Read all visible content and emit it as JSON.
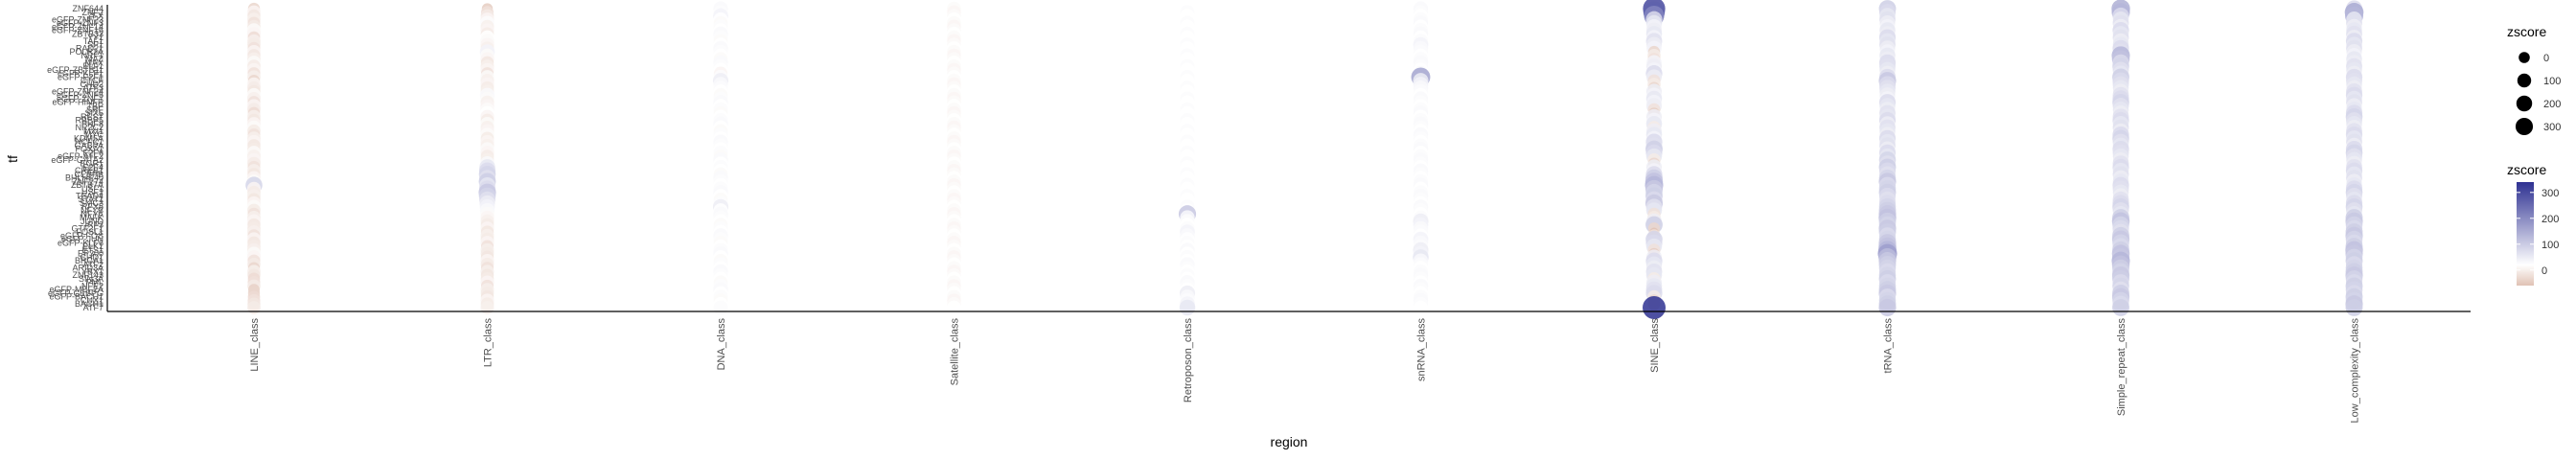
{
  "chart_data": {
    "type": "scatter",
    "subtype": "dot-plot",
    "xlabel": "region",
    "ylabel": "tf",
    "categories": [
      "LINE_class",
      "LTR_class",
      "DNA_class",
      "Satellite_class",
      "Retroposon_class",
      "snRNA_class",
      "SINE_class",
      "tRNA_class",
      "Simple_repeat_class",
      "Low_complexity_class"
    ],
    "y_tick_labels": [
      "ZNF644",
      "ZNF2",
      "ZFX",
      "eGFP-ZNF23",
      "eGFP-ZNF3",
      "eGFP-ZNF14",
      "eGFP-ZNF16",
      "ZBTB33",
      "YY1",
      "TAF1",
      "SP1",
      "RAD21",
      "POLR2A",
      "NRF1",
      "MAZ",
      "MAX",
      "ELF1",
      "eGFP-ZBTB11",
      "eGFP-KLF1",
      "eGFP-E2F1",
      "CTCF",
      "CHD2",
      "ATF3",
      "eGFP-ZNF24",
      "eGFP-ZNF5",
      "eGFP-ZNF7",
      "eGFP-HINFP",
      "TBP",
      "SRF",
      "SIX5",
      "REST",
      "RBBP5",
      "PHF8",
      "NR2C2",
      "MXI1",
      "MYC",
      "KDM5A",
      "HCFC1",
      "GABPA",
      "FOXA1",
      "E2F6",
      "eGFP-ATF2",
      "eGFP-GATA2",
      "EGR1",
      "E2F4",
      "CREB1",
      "CEBPB",
      "BHLHE40",
      "ZNF274",
      "ZBTB7A",
      "USF1",
      "USF2",
      "TEAD4",
      "STAT1",
      "SMC3",
      "RFX5",
      "NFYB",
      "NFYA",
      "MAFK",
      "JUND",
      "IRF3",
      "GTF2F1",
      "FOSL1",
      "eGFP-FOS",
      "eGFP-JUN",
      "eGFP-KLF6",
      "ELK1",
      "ETS1",
      "EP300",
      "CHD1",
      "BRCA1",
      "ATF2",
      "ARID3A",
      "YBX1",
      "ZNF143",
      "SIN3A",
      "PML",
      "NFE2",
      "eGFP-MEF2A",
      "eGFP-CEBPG",
      "eGFP-BACH1",
      "CUX1",
      "BACH1",
      "ATF7"
    ],
    "size_legend": {
      "title": "zscore",
      "breaks": [
        0,
        100,
        200,
        300
      ]
    },
    "color_legend": {
      "title": "zscore",
      "breaks": [
        0,
        100,
        200,
        300
      ],
      "low": "#e0c2b4",
      "mid": "#ffffff",
      "high": "#2e3192"
    },
    "values": [
      [
        -40,
        -10,
        -25,
        -15,
        -30,
        -20,
        -5,
        -10,
        -35,
        -15,
        -20,
        -30,
        -10,
        -25,
        -15,
        -5,
        -20,
        -10,
        -30,
        -15,
        -40,
        -10,
        -20,
        -25,
        -5,
        -15,
        -30,
        -10,
        -20,
        -35,
        -15,
        -25,
        -10,
        -5,
        -20,
        -30,
        -15,
        -10,
        -25,
        -20,
        -5,
        -15,
        -10,
        -20,
        -30,
        -15,
        -25,
        -10,
        -5,
        70,
        -10,
        -20,
        -15,
        -25,
        -10,
        -5,
        -20,
        -30,
        -15,
        -10,
        -25,
        -20,
        -15,
        -30,
        -10,
        -25,
        -20,
        -15,
        -5,
        -10,
        -30,
        -20,
        -40,
        -15,
        -25,
        -35,
        -30,
        -20,
        -45,
        -40,
        -35,
        -30,
        -25,
        -20
      ],
      [
        -50,
        -30,
        -20,
        -10,
        5,
        -15,
        -10,
        -20,
        0,
        -5,
        -10,
        -15,
        20,
        -5,
        -10,
        -25,
        -15,
        -10,
        -30,
        -5,
        -15,
        -10,
        -20,
        -15,
        10,
        -5,
        -15,
        -10,
        -5,
        0,
        -10,
        -20,
        -5,
        -15,
        -10,
        -5,
        -20,
        -10,
        -15,
        -5,
        -10,
        -20,
        -15,
        10,
        40,
        60,
        70,
        50,
        80,
        40,
        60,
        90,
        70,
        50,
        30,
        20,
        10,
        -5,
        -10,
        -15,
        -20,
        -10,
        -25,
        -15,
        -20,
        -10,
        -30,
        -15,
        -20,
        -25,
        -10,
        -20,
        -30,
        -15,
        -25,
        -20,
        -10,
        -30,
        -15,
        -20,
        -25,
        -10,
        -20,
        -15
      ],
      [
        10,
        5,
        20,
        0,
        -5,
        5,
        0,
        10,
        5,
        -5,
        0,
        10,
        5,
        0,
        -5,
        10,
        5,
        0,
        -10,
        5,
        30,
        10,
        5,
        0,
        -5,
        5,
        10,
        0,
        5,
        -5,
        0,
        5,
        10,
        0,
        -5,
        5,
        0,
        10,
        5,
        0,
        5,
        -5,
        10,
        0,
        5,
        0,
        -5,
        10,
        5,
        0,
        5,
        10,
        0,
        -5,
        5,
        30,
        0,
        10,
        5,
        0,
        -5,
        5,
        0,
        10,
        5,
        -5,
        0,
        5,
        10,
        0,
        -5,
        5,
        0,
        10,
        5,
        0,
        -5,
        5,
        10,
        0,
        5,
        -5,
        0,
        5
      ],
      [
        -5,
        -10,
        -5,
        0,
        -5,
        -10,
        -5,
        0,
        -5,
        -10,
        -5,
        0,
        -5,
        -10,
        -5,
        0,
        -5,
        -10,
        -5,
        0,
        -5,
        -10,
        -5,
        0,
        -5,
        -10,
        -5,
        0,
        -5,
        -10,
        -5,
        0,
        -5,
        -10,
        -5,
        0,
        -5,
        -10,
        -5,
        0,
        -5,
        -10,
        -5,
        0,
        -5,
        -10,
        -5,
        0,
        -5,
        -10,
        -5,
        0,
        -5,
        -10,
        -5,
        0,
        -5,
        -10,
        -5,
        0,
        -5,
        -10,
        -5,
        0,
        -5,
        -10,
        -5,
        0,
        -5,
        -10,
        -5,
        0,
        -5,
        -10,
        -5,
        0,
        -5,
        -10,
        -5,
        0,
        -5,
        -10,
        -5,
        0
      ],
      [
        0,
        5,
        0,
        0,
        5,
        0,
        0,
        5,
        0,
        0,
        5,
        0,
        0,
        5,
        0,
        0,
        5,
        0,
        0,
        5,
        0,
        0,
        5,
        0,
        0,
        5,
        0,
        0,
        5,
        0,
        0,
        5,
        0,
        0,
        5,
        0,
        0,
        5,
        0,
        0,
        5,
        0,
        0,
        5,
        0,
        0,
        5,
        0,
        0,
        5,
        0,
        0,
        5,
        0,
        0,
        5,
        0,
        90,
        10,
        5,
        0,
        5,
        20,
        10,
        0,
        5,
        0,
        10,
        0,
        5,
        0,
        10,
        5,
        0,
        5,
        0,
        10,
        5,
        0,
        30,
        10,
        5,
        20,
        40
      ],
      [
        10,
        5,
        0,
        5,
        10,
        0,
        5,
        10,
        0,
        5,
        20,
        10,
        5,
        0,
        5,
        10,
        5,
        0,
        10,
        150,
        30,
        20,
        10,
        5,
        0,
        10,
        5,
        0,
        5,
        10,
        0,
        5,
        10,
        5,
        0,
        10,
        5,
        0,
        5,
        10,
        0,
        5,
        10,
        5,
        0,
        10,
        5,
        0,
        5,
        10,
        0,
        5,
        10,
        5,
        0,
        10,
        5,
        0,
        5,
        30,
        20,
        10,
        5,
        0,
        20,
        10,
        5,
        30,
        20,
        40,
        10,
        5,
        0,
        5,
        10,
        5,
        0,
        10,
        5,
        0,
        5,
        10,
        5,
        0
      ],
      [
        300,
        260,
        200,
        60,
        40,
        20,
        30,
        40,
        20,
        50,
        30,
        20,
        -40,
        -20,
        -30,
        20,
        30,
        20,
        60,
        30,
        -30,
        -20,
        -40,
        30,
        20,
        40,
        20,
        30,
        -30,
        -50,
        30,
        20,
        40,
        -20,
        30,
        40,
        20,
        60,
        50,
        80,
        60,
        40,
        -20,
        -40,
        30,
        20,
        60,
        80,
        100,
        120,
        90,
        70,
        80,
        60,
        90,
        50,
        40,
        -30,
        -20,
        30,
        80,
        -40,
        -60,
        -30,
        70,
        60,
        40,
        -30,
        -50,
        30,
        60,
        40,
        30,
        50,
        40,
        -20,
        30,
        40,
        50,
        60,
        -20,
        -40,
        -30,
        340
      ],
      [
        80,
        60,
        40,
        50,
        30,
        20,
        40,
        30,
        60,
        40,
        50,
        30,
        20,
        40,
        30,
        60,
        50,
        40,
        30,
        60,
        90,
        60,
        50,
        40,
        30,
        20,
        60,
        40,
        30,
        50,
        40,
        60,
        30,
        50,
        40,
        30,
        60,
        40,
        50,
        30,
        60,
        40,
        70,
        50,
        80,
        60,
        50,
        70,
        90,
        60,
        70,
        80,
        60,
        50,
        60,
        70,
        80,
        90,
        100,
        80,
        70,
        90,
        80,
        60,
        70,
        90,
        100,
        120,
        160,
        110,
        90,
        80,
        70,
        60,
        70,
        80,
        60,
        70,
        80,
        90,
        60,
        70,
        80,
        90
      ],
      [
        130,
        120,
        60,
        40,
        50,
        30,
        60,
        40,
        50,
        30,
        40,
        60,
        50,
        120,
        100,
        60,
        70,
        50,
        40,
        80,
        60,
        50,
        40,
        30,
        50,
        60,
        70,
        50,
        40,
        30,
        50,
        60,
        40,
        50,
        30,
        60,
        70,
        50,
        40,
        60,
        50,
        40,
        30,
        50,
        60,
        40,
        50,
        30,
        40,
        60,
        50,
        40,
        30,
        50,
        60,
        70,
        50,
        40,
        80,
        100,
        70,
        60,
        50,
        80,
        90,
        70,
        60,
        80,
        100,
        90,
        120,
        100,
        80,
        70,
        90,
        80,
        60,
        70,
        50,
        80,
        90,
        70,
        60,
        80
      ],
      [
        60,
        140,
        120,
        40,
        50,
        30,
        40,
        50,
        30,
        60,
        40,
        50,
        30,
        20,
        40,
        30,
        50,
        40,
        30,
        60,
        50,
        40,
        30,
        50,
        60,
        40,
        50,
        30,
        40,
        60,
        70,
        50,
        40,
        30,
        50,
        60,
        40,
        50,
        30,
        60,
        70,
        50,
        40,
        30,
        50,
        60,
        40,
        50,
        30,
        40,
        60,
        70,
        50,
        40,
        60,
        70,
        50,
        40,
        80,
        90,
        70,
        60,
        80,
        90,
        70,
        60,
        80,
        100,
        90,
        70,
        80,
        60,
        70,
        80,
        90,
        70,
        60,
        80,
        70,
        60,
        80,
        70,
        90,
        80
      ]
    ]
  },
  "colors": {
    "low": "#e0c2b4",
    "mid": "#ffffff",
    "high": "#2e3192",
    "axis": "#000000"
  }
}
